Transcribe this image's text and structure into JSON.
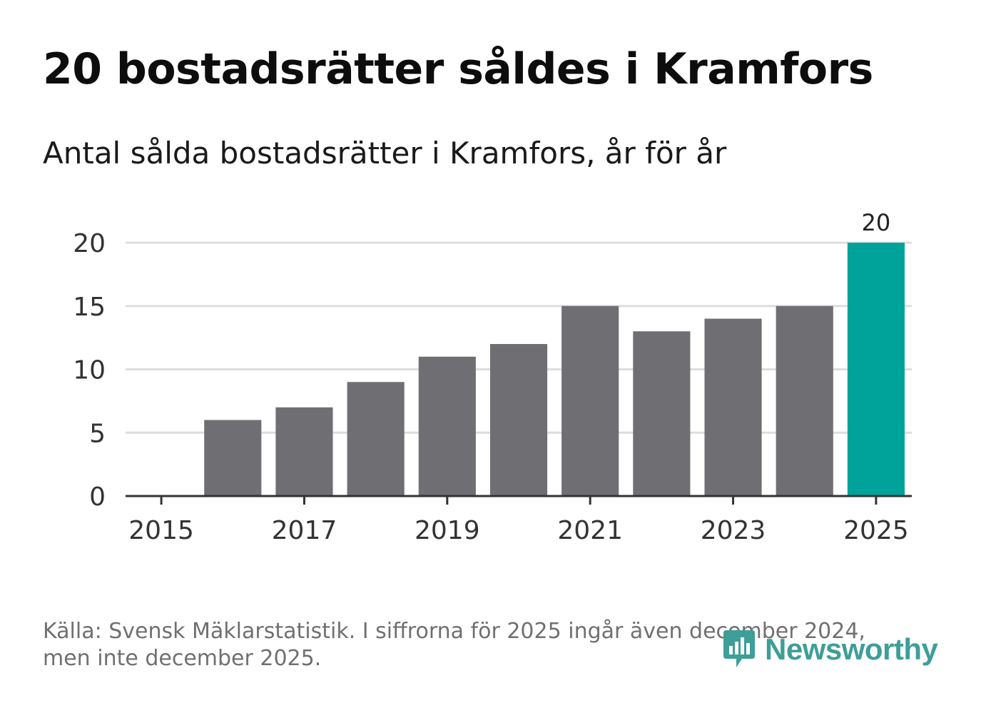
{
  "title": "20 bostadsrätter såldes i Kramfors",
  "subtitle": "Antal sålda bostadsrätter i Kramfors, år för år",
  "footer": {
    "line1": "Källa: Svensk Mäklarstatistik. I siffrorna för 2025 ingår även december 2024,",
    "line2": "men inte december 2025."
  },
  "brand": {
    "name": "Newsworthy",
    "color": "#3e9e98",
    "icon": "newsworthy-logo-icon"
  },
  "colors": {
    "bar": "#6f6e73",
    "highlight": "#00a39a",
    "grid": "#dddddd",
    "axis": "#333333"
  },
  "chart_data": {
    "type": "bar",
    "title": "20 bostadsrätter såldes i Kramfors",
    "subtitle": "Antal sålda bostadsrätter i Kramfors, år för år",
    "xlabel": "",
    "ylabel": "",
    "categories": [
      "2015",
      "2016",
      "2017",
      "2018",
      "2019",
      "2020",
      "2021",
      "2022",
      "2023",
      "2024",
      "2025"
    ],
    "values": [
      0,
      6,
      7,
      9,
      11,
      12,
      15,
      13,
      14,
      15,
      20
    ],
    "highlight_category": "2025",
    "data_labels": [
      {
        "category": "2025",
        "text": "20"
      }
    ],
    "ylim": [
      0,
      20
    ],
    "yticks": [
      0,
      5,
      10,
      15,
      20
    ],
    "xticks": [
      "2015",
      "2017",
      "2019",
      "2021",
      "2023",
      "2025"
    ],
    "grid": true
  }
}
